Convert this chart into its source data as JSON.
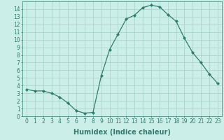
{
  "x": [
    0,
    1,
    2,
    3,
    4,
    5,
    6,
    7,
    8,
    9,
    10,
    11,
    12,
    13,
    14,
    15,
    16,
    17,
    18,
    19,
    20,
    21,
    22,
    23
  ],
  "y": [
    3.5,
    3.3,
    3.3,
    3.0,
    2.5,
    1.7,
    0.7,
    0.4,
    0.5,
    5.3,
    8.7,
    10.7,
    12.7,
    13.2,
    14.2,
    14.5,
    14.3,
    13.3,
    12.4,
    10.2,
    8.3,
    7.0,
    5.5,
    4.3
  ],
  "line_color": "#2e7d6e",
  "marker": "D",
  "marker_size": 2.0,
  "xlim": [
    -0.5,
    23.5
  ],
  "ylim": [
    0,
    15
  ],
  "yticks": [
    0,
    1,
    2,
    3,
    4,
    5,
    6,
    7,
    8,
    9,
    10,
    11,
    12,
    13,
    14
  ],
  "xticks": [
    0,
    1,
    2,
    3,
    4,
    5,
    6,
    7,
    8,
    9,
    10,
    11,
    12,
    13,
    14,
    15,
    16,
    17,
    18,
    19,
    20,
    21,
    22,
    23
  ],
  "background_color": "#cceee8",
  "grid_color": "#aad4cc",
  "tick_fontsize": 5.5,
  "xlabel": "Humidex (Indice chaleur)",
  "xlabel_fontsize": 7.0,
  "linewidth": 0.9
}
